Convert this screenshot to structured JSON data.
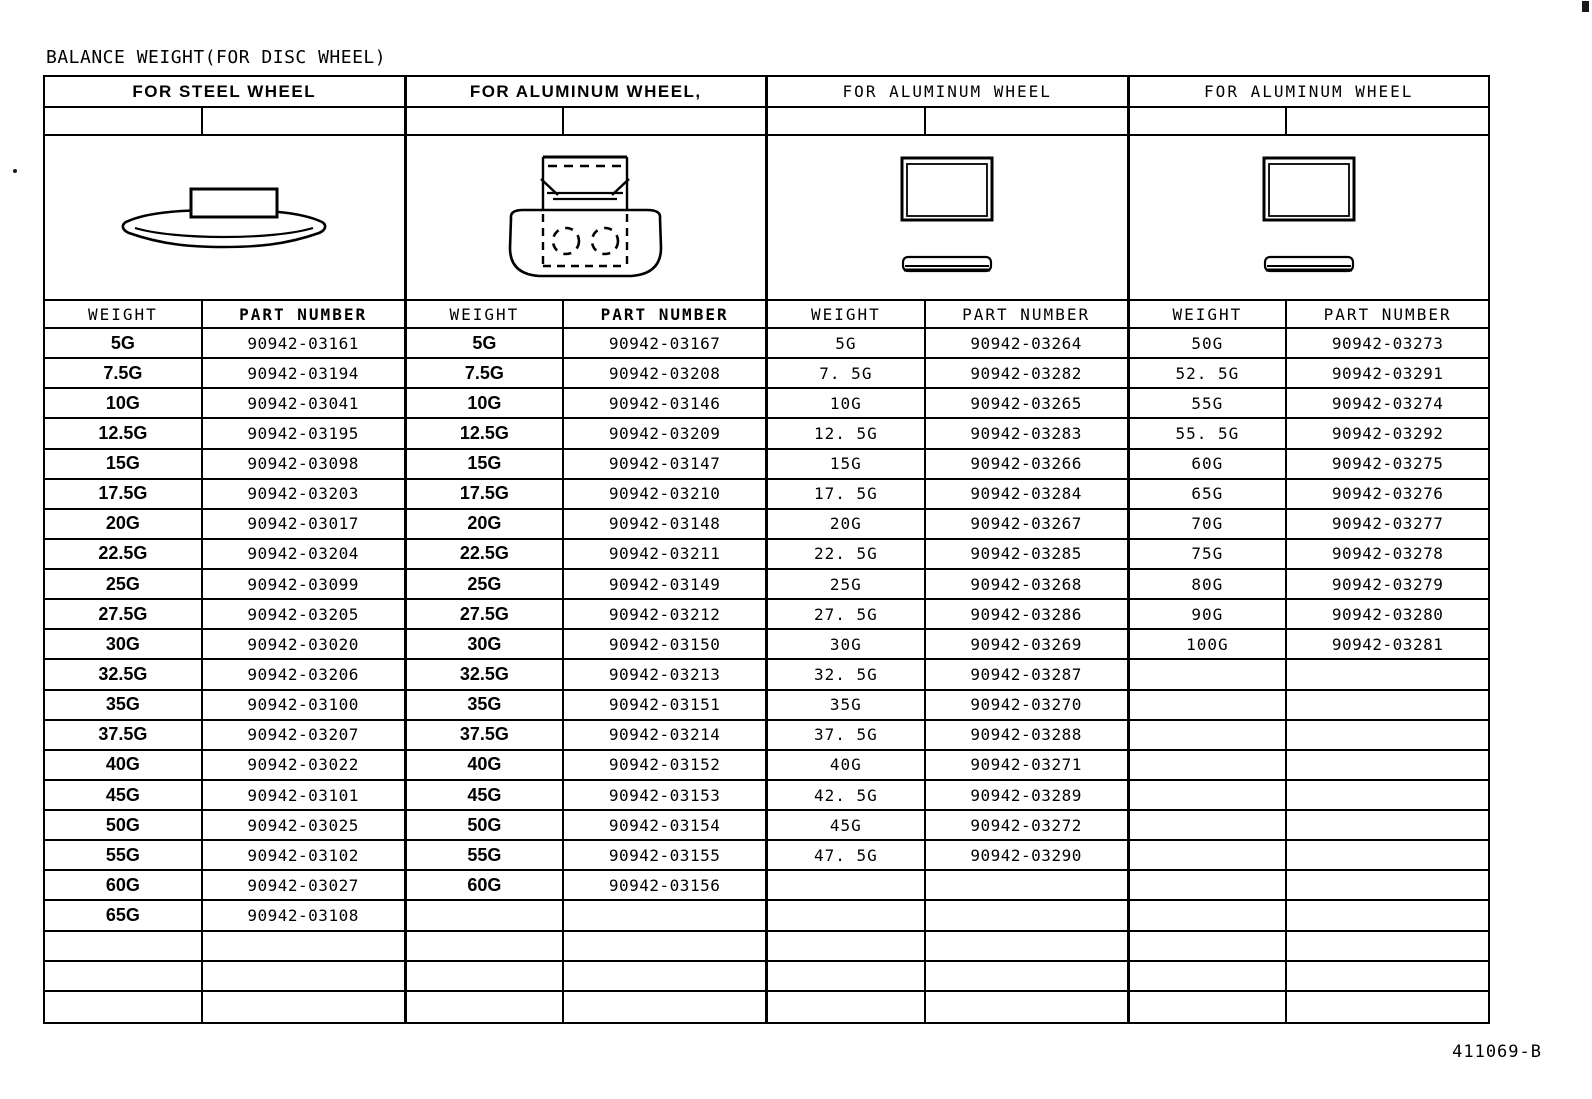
{
  "page": {
    "title": "BALANCE WEIGHT(FOR DISC WHEEL)",
    "drawing_number": "411069-B"
  },
  "table": {
    "columns": [
      {
        "header": "FOR STEEL WHEEL",
        "illustration": "steel-clip-on-weight-icon",
        "col_headers": {
          "weight": "WEIGHT",
          "part_number": "PART NUMBER"
        },
        "empty_rows": 3,
        "rows": [
          {
            "weight": "5G",
            "part_number": "90942-03161"
          },
          {
            "weight": "7.5G",
            "part_number": "90942-03194"
          },
          {
            "weight": "10G",
            "part_number": "90942-03041"
          },
          {
            "weight": "12.5G",
            "part_number": "90942-03195"
          },
          {
            "weight": "15G",
            "part_number": "90942-03098"
          },
          {
            "weight": "17.5G",
            "part_number": "90942-03203"
          },
          {
            "weight": "20G",
            "part_number": "90942-03017"
          },
          {
            "weight": "22.5G",
            "part_number": "90942-03204"
          },
          {
            "weight": "25G",
            "part_number": "90942-03099"
          },
          {
            "weight": "27.5G",
            "part_number": "90942-03205"
          },
          {
            "weight": "30G",
            "part_number": "90942-03020"
          },
          {
            "weight": "32.5G",
            "part_number": "90942-03206"
          },
          {
            "weight": "35G",
            "part_number": "90942-03100"
          },
          {
            "weight": "37.5G",
            "part_number": "90942-03207"
          },
          {
            "weight": "40G",
            "part_number": "90942-03022"
          },
          {
            "weight": "45G",
            "part_number": "90942-03101"
          },
          {
            "weight": "50G",
            "part_number": "90942-03025"
          },
          {
            "weight": "55G",
            "part_number": "90942-03102"
          },
          {
            "weight": "60G",
            "part_number": "90942-03027"
          },
          {
            "weight": "65G",
            "part_number": "90942-03108"
          }
        ]
      },
      {
        "header": "FOR ALUMINUM WHEEL,",
        "illustration": "aluminum-clip-on-weight-icon",
        "col_headers": {
          "weight": "WEIGHT",
          "part_number": "PART NUMBER"
        },
        "empty_rows": 4,
        "rows": [
          {
            "weight": "5G",
            "part_number": "90942-03167"
          },
          {
            "weight": "7.5G",
            "part_number": "90942-03208"
          },
          {
            "weight": "10G",
            "part_number": "90942-03146"
          },
          {
            "weight": "12.5G",
            "part_number": "90942-03209"
          },
          {
            "weight": "15G",
            "part_number": "90942-03147"
          },
          {
            "weight": "17.5G",
            "part_number": "90942-03210"
          },
          {
            "weight": "20G",
            "part_number": "90942-03148"
          },
          {
            "weight": "22.5G",
            "part_number": "90942-03211"
          },
          {
            "weight": "25G",
            "part_number": "90942-03149"
          },
          {
            "weight": "27.5G",
            "part_number": "90942-03212"
          },
          {
            "weight": "30G",
            "part_number": "90942-03150"
          },
          {
            "weight": "32.5G",
            "part_number": "90942-03213"
          },
          {
            "weight": "35G",
            "part_number": "90942-03151"
          },
          {
            "weight": "37.5G",
            "part_number": "90942-03214"
          },
          {
            "weight": "40G",
            "part_number": "90942-03152"
          },
          {
            "weight": "45G",
            "part_number": "90942-03153"
          },
          {
            "weight": "50G",
            "part_number": "90942-03154"
          },
          {
            "weight": "55G",
            "part_number": "90942-03155"
          },
          {
            "weight": "60G",
            "part_number": "90942-03156"
          }
        ]
      },
      {
        "header": "FOR ALUMINUM WHEEL",
        "illustration": "stick-on-weight-icon",
        "col_headers": {
          "weight": "WEIGHT",
          "part_number": "PART NUMBER"
        },
        "empty_rows": 5,
        "rows": [
          {
            "weight": "5G",
            "part_number": "90942-03264"
          },
          {
            "weight": "7. 5G",
            "part_number": "90942-03282"
          },
          {
            "weight": "10G",
            "part_number": "90942-03265"
          },
          {
            "weight": "12. 5G",
            "part_number": "90942-03283"
          },
          {
            "weight": "15G",
            "part_number": "90942-03266"
          },
          {
            "weight": "17. 5G",
            "part_number": "90942-03284"
          },
          {
            "weight": "20G",
            "part_number": "90942-03267"
          },
          {
            "weight": "22. 5G",
            "part_number": "90942-03285"
          },
          {
            "weight": "25G",
            "part_number": "90942-03268"
          },
          {
            "weight": "27. 5G",
            "part_number": "90942-03286"
          },
          {
            "weight": "30G",
            "part_number": "90942-03269"
          },
          {
            "weight": "32. 5G",
            "part_number": "90942-03287"
          },
          {
            "weight": "35G",
            "part_number": "90942-03270"
          },
          {
            "weight": "37. 5G",
            "part_number": "90942-03288"
          },
          {
            "weight": "40G",
            "part_number": "90942-03271"
          },
          {
            "weight": "42. 5G",
            "part_number": "90942-03289"
          },
          {
            "weight": "45G",
            "part_number": "90942-03272"
          },
          {
            "weight": "47. 5G",
            "part_number": "90942-03290"
          }
        ]
      },
      {
        "header": "FOR ALUMINUM WHEEL",
        "illustration": "stick-on-weight-icon",
        "col_headers": {
          "weight": "WEIGHT",
          "part_number": "PART NUMBER"
        },
        "empty_rows": 12,
        "rows": [
          {
            "weight": "50G",
            "part_number": "90942-03273"
          },
          {
            "weight": "52. 5G",
            "part_number": "90942-03291"
          },
          {
            "weight": "55G",
            "part_number": "90942-03274"
          },
          {
            "weight": "55. 5G",
            "part_number": "90942-03292"
          },
          {
            "weight": "60G",
            "part_number": "90942-03275"
          },
          {
            "weight": "65G",
            "part_number": "90942-03276"
          },
          {
            "weight": "70G",
            "part_number": "90942-03277"
          },
          {
            "weight": "75G",
            "part_number": "90942-03278"
          },
          {
            "weight": "80G",
            "part_number": "90942-03279"
          },
          {
            "weight": "90G",
            "part_number": "90942-03280"
          },
          {
            "weight": "100G",
            "part_number": "90942-03281"
          }
        ]
      }
    ]
  }
}
